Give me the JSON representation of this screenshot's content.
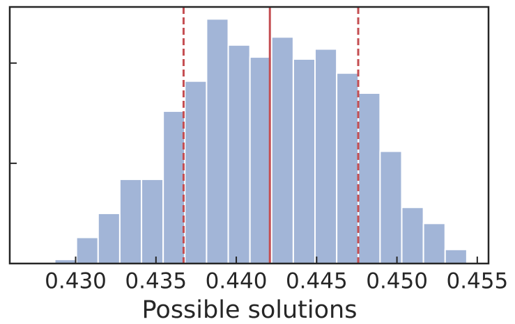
{
  "chart_data": {
    "type": "histogram",
    "xlabel": "Possible solutions",
    "bins": [
      0.4287,
      0.43005,
      0.4314,
      0.43275,
      0.4341,
      0.43545,
      0.4368,
      0.43815,
      0.4395,
      0.44085,
      0.4422,
      0.44355,
      0.4449,
      0.44625,
      0.4476,
      0.44895,
      0.4503,
      0.45165,
      0.453,
      0.45435
    ],
    "values": [
      2,
      13,
      25,
      42,
      42,
      76,
      91,
      122,
      109,
      103,
      113,
      102,
      107,
      95,
      85,
      56,
      28,
      20,
      7
    ],
    "color": "#a2b5d7",
    "xlim": [
      0.4259,
      0.4557
    ],
    "xticks": [
      {
        "value": 0.43,
        "label": "0.430"
      },
      {
        "value": 0.435,
        "label": "0.435"
      },
      {
        "value": 0.44,
        "label": "0.440"
      },
      {
        "value": 0.445,
        "label": "0.445"
      },
      {
        "value": 0.45,
        "label": "0.450"
      },
      {
        "value": 0.455,
        "label": "0.455"
      }
    ],
    "ylim": [
      0,
      128
    ],
    "yticks": [
      50,
      100
    ],
    "vlines": [
      {
        "x": 0.43672,
        "style": "dashed"
      },
      {
        "x": 0.44209,
        "style": "solid"
      },
      {
        "x": 0.44759,
        "style": "dashed"
      }
    ],
    "vline_color": "#c44e52"
  }
}
